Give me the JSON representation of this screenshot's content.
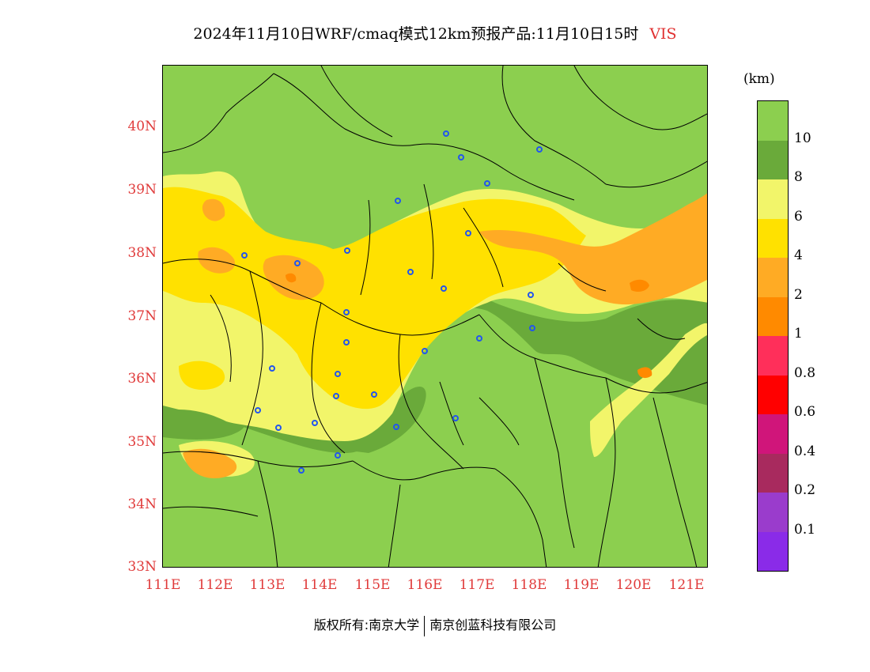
{
  "title": {
    "main": "2024年11月10日WRF/cmaq模式12km预报产品:11月10日15时",
    "variable": "VIS"
  },
  "axes": {
    "x_ticks": [
      "111E",
      "112E",
      "113E",
      "114E",
      "115E",
      "116E",
      "117E",
      "118E",
      "119E",
      "120E",
      "121E"
    ],
    "y_ticks": [
      "40N",
      "39N",
      "38N",
      "37N",
      "36N",
      "35N",
      "34N",
      "33N"
    ]
  },
  "legend": {
    "unit": "(km)",
    "items": [
      {
        "label": "10",
        "color": "#8ccf4f"
      },
      {
        "label": "8",
        "color": "#6aaa3a"
      },
      {
        "label": "6",
        "color": "#f2f56a"
      },
      {
        "label": "4",
        "color": "#ffe100"
      },
      {
        "label": "2",
        "color": "#ffab24"
      },
      {
        "label": "1",
        "color": "#ff8a00"
      },
      {
        "label": "0.8",
        "color": "#ff2f5a"
      },
      {
        "label": "0.6",
        "color": "#ff0000"
      },
      {
        "label": "0.4",
        "color": "#d0157a"
      },
      {
        "label": "0.2",
        "color": "#a82a5e"
      },
      {
        "label": "0.1",
        "color": "#9a3ccc"
      },
      {
        "label": "",
        "color": "#8a2be8"
      }
    ]
  },
  "footer": {
    "left": "版权所有:南京大学",
    "right": "南京创蓝科技有限公司"
  }
}
